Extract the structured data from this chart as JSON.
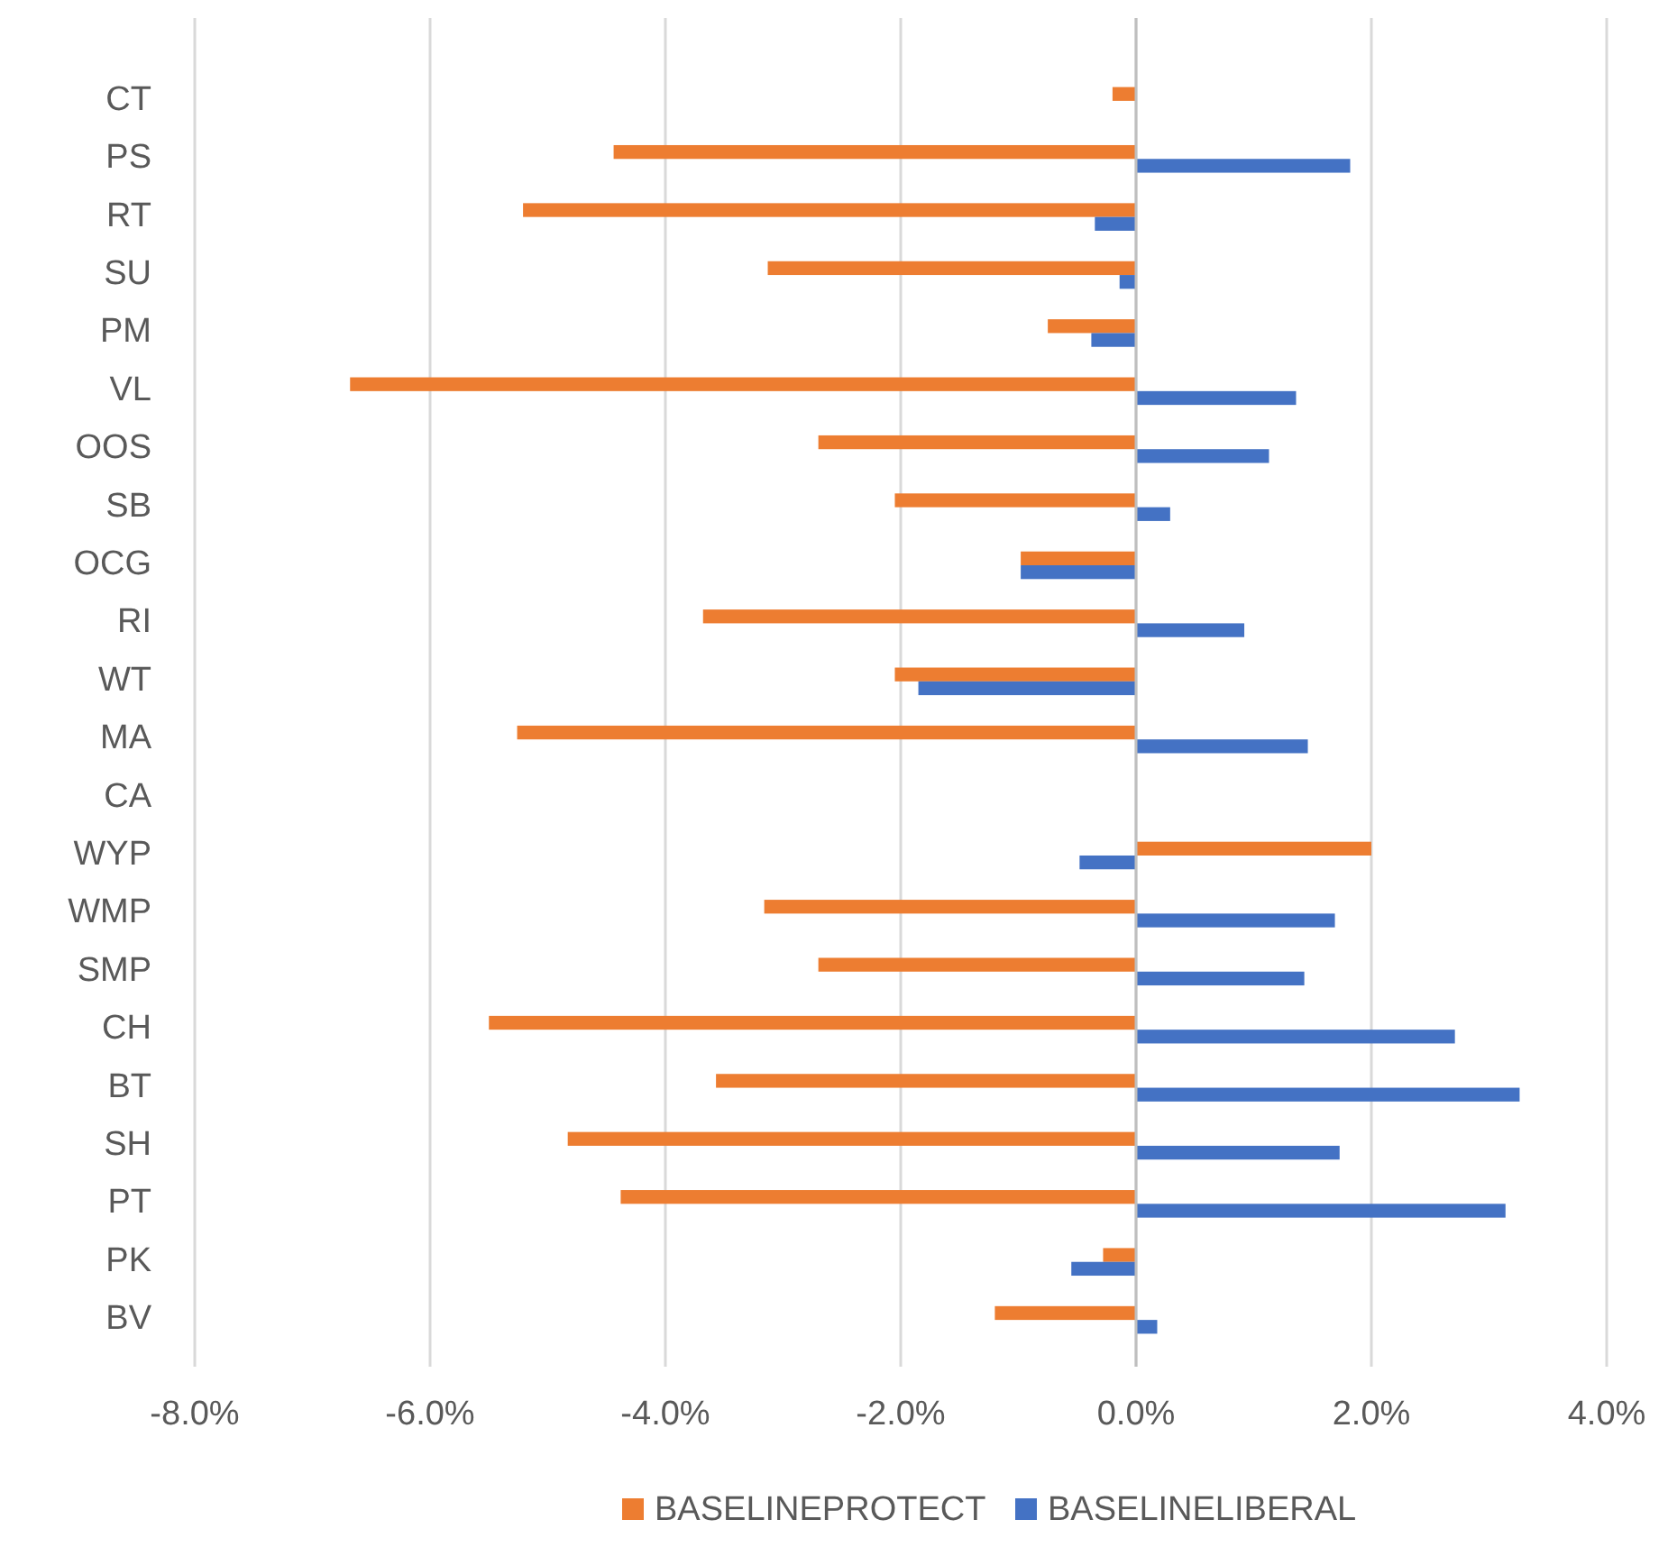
{
  "chart_data": {
    "type": "bar",
    "orientation": "horizontal",
    "categories": [
      "CT",
      "PS",
      "RT",
      "SU",
      "PM",
      "VL",
      "OOS",
      "SB",
      "OCG",
      "RI",
      "WT",
      "MA",
      "CA",
      "WYP",
      "WMP",
      "SMP",
      "CH",
      "BT",
      "SH",
      "PT",
      "PK",
      "BV"
    ],
    "series": [
      {
        "name": "BASELINEPROTECT",
        "color": "#ed7d31",
        "values": [
          -0.2,
          -4.44,
          -5.21,
          -3.13,
          -0.75,
          -6.68,
          -2.7,
          -2.05,
          -0.98,
          -3.68,
          -2.05,
          -5.26,
          0,
          2.0,
          -3.16,
          -2.7,
          -5.5,
          -3.57,
          -4.83,
          -4.38,
          -0.28,
          -1.2
        ]
      },
      {
        "name": "BASELINELIBERAL",
        "color": "#4472c4",
        "values": [
          0,
          1.82,
          -0.35,
          -0.14,
          -0.38,
          1.36,
          1.13,
          0.29,
          -0.98,
          0.92,
          -1.85,
          1.46,
          0,
          -0.48,
          1.69,
          1.43,
          2.71,
          3.26,
          1.73,
          3.14,
          -0.55,
          0.18
        ]
      }
    ],
    "xlim": [
      -8,
      4
    ],
    "xticks": [
      {
        "value": -8,
        "label": "-8.0%"
      },
      {
        "value": -6,
        "label": "-6.0%"
      },
      {
        "value": -4,
        "label": "-4.0%"
      },
      {
        "value": -2,
        "label": "-2.0%"
      },
      {
        "value": 0,
        "label": "0.0%"
      },
      {
        "value": 2,
        "label": "2.0%"
      },
      {
        "value": 4,
        "label": "4.0%"
      }
    ],
    "grid": "x",
    "legend": "bottom"
  }
}
